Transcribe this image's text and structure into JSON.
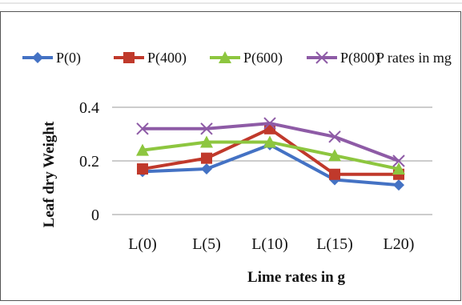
{
  "chart_data": {
    "type": "line",
    "categories": [
      "L(0)",
      "L(5)",
      "L(10)",
      "L(15)",
      "L20)"
    ],
    "series": [
      {
        "name": "P(0)",
        "values": [
          0.16,
          0.17,
          0.26,
          0.13,
          0.11
        ],
        "color": "#4472C4",
        "marker": "diamond"
      },
      {
        "name": "P(400)",
        "values": [
          0.17,
          0.21,
          0.32,
          0.15,
          0.15
        ],
        "color": "#C0392B",
        "marker": "square"
      },
      {
        "name": "P(600)",
        "values": [
          0.24,
          0.27,
          0.27,
          0.22,
          0.17
        ],
        "color": "#8DC63F",
        "marker": "triangle"
      },
      {
        "name": "P(800)",
        "values": [
          0.32,
          0.32,
          0.34,
          0.29,
          0.2
        ],
        "color": "#8E5BA6",
        "marker": "x"
      }
    ],
    "legend_note": "P rates in mg",
    "xlabel": "Lime rates in g",
    "ylabel": "Leaf dry  Weight",
    "ylim": [
      0,
      0.4
    ],
    "yticks": [
      "0",
      "0.2",
      "0.4"
    ],
    "grid": true,
    "legend_position": "top"
  }
}
